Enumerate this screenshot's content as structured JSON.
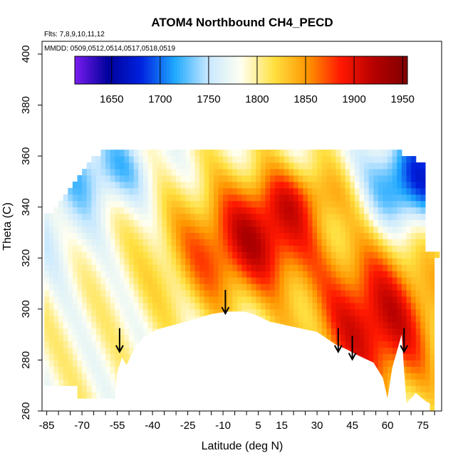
{
  "chart_data": {
    "type": "heatmap",
    "title": "ATOM4 Northbound CH4_PECD",
    "annotations": {
      "flights": "Flts: 7,8,9,10,11,12",
      "dates": "MMDD: 0509,0512,0514,0517,0518,0519"
    },
    "xlabel": "Latitude (deg N)",
    "ylabel": "Theta (C)",
    "xlim": [
      -87,
      83
    ],
    "ylim": [
      260,
      405
    ],
    "x_ticks": [
      -85,
      -70,
      -55,
      -40,
      -25,
      -10,
      5,
      15,
      30,
      45,
      60,
      75
    ],
    "y_ticks": [
      260,
      280,
      300,
      320,
      340,
      360,
      380,
      400
    ],
    "colorbar": {
      "range": [
        1612,
        1955
      ],
      "ticks": [
        1650,
        1700,
        1750,
        1800,
        1850,
        1900,
        1950
      ],
      "colors": [
        "#7a1cf0",
        "#00009a",
        "#0022e0",
        "#1ea8ff",
        "#c7e8ff",
        "#fffff0",
        "#ffe040",
        "#ff9600",
        "#ff1800",
        "#b50000",
        "#800000"
      ]
    },
    "ground_boundary": [
      [
        -56,
        265
      ],
      [
        -55,
        275
      ],
      [
        -53,
        281
      ],
      [
        -51,
        278
      ],
      [
        -48,
        284
      ],
      [
        -44,
        289
      ],
      [
        -38,
        292
      ],
      [
        -30,
        294
      ],
      [
        -22,
        296
      ],
      [
        -15,
        298
      ],
      [
        -8,
        299
      ],
      [
        -1,
        299
      ],
      [
        3,
        298
      ],
      [
        10,
        295
      ],
      [
        20,
        293
      ],
      [
        30,
        291
      ],
      [
        38,
        286
      ],
      [
        43,
        284
      ],
      [
        47,
        282
      ],
      [
        54,
        279
      ],
      [
        58,
        273
      ],
      [
        60,
        265
      ],
      [
        62,
        277
      ],
      [
        66,
        290
      ],
      [
        68,
        263
      ],
      [
        72,
        267
      ],
      [
        76,
        264
      ],
      [
        78,
        263
      ]
    ],
    "arrows_latitude": [
      -54,
      -9,
      39,
      45,
      67
    ],
    "field_description_values": {
      "south_low_levels": 1790,
      "tropical_upper_band": 1880,
      "northern_midlat_lower": 1905,
      "high_latitude_upper": 1680,
      "southern_upper": 1750
    }
  }
}
